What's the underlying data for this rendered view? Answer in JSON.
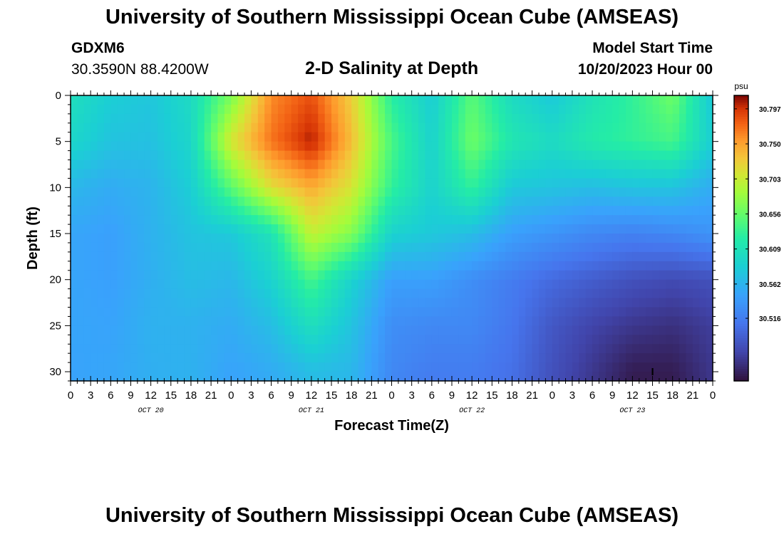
{
  "header": {
    "title": "University of Southern Mississippi Ocean Cube (AMSEAS)",
    "station": "GDXM6",
    "coordinates": "30.3590N  88.4200W",
    "subtitle": "2-D Salinity at Depth",
    "model_start_label": "Model Start Time",
    "model_start_value": "10/20/2023 Hour 00"
  },
  "footer": {
    "title": "University of Southern Mississippi Ocean Cube (AMSEAS)"
  },
  "chart_data": {
    "type": "heatmap",
    "title": "2-D Salinity at Depth",
    "xlabel": "Forecast Time(Z)",
    "ylabel": "Depth (ft)",
    "x_hours": [
      0,
      6,
      12,
      18,
      24,
      30,
      36,
      42,
      48,
      54,
      60,
      66,
      72,
      78,
      84,
      90,
      96
    ],
    "y_depths_ft": [
      0,
      5,
      10,
      15,
      20,
      25,
      30
    ],
    "values_psu": [
      [
        30.605,
        30.585,
        30.578,
        30.6,
        30.665,
        30.76,
        30.785,
        30.725,
        30.625,
        30.585,
        30.65,
        30.6,
        30.58,
        30.61,
        30.63,
        30.66,
        30.578
      ],
      [
        30.595,
        30.575,
        30.573,
        30.595,
        30.71,
        30.77,
        30.805,
        30.735,
        30.642,
        30.59,
        30.66,
        30.615,
        30.6,
        30.62,
        30.63,
        30.64,
        30.585
      ],
      [
        30.565,
        30.555,
        30.562,
        30.585,
        30.65,
        30.715,
        30.745,
        30.71,
        30.63,
        30.59,
        30.63,
        30.58,
        30.575,
        30.57,
        30.575,
        30.575,
        30.555
      ],
      [
        30.55,
        30.545,
        30.56,
        30.575,
        30.58,
        30.61,
        30.7,
        30.67,
        30.59,
        30.58,
        30.57,
        30.545,
        30.535,
        30.525,
        30.52,
        30.525,
        30.535
      ],
      [
        30.55,
        30.545,
        30.558,
        30.57,
        30.565,
        30.59,
        30.64,
        30.59,
        30.545,
        30.545,
        30.53,
        30.515,
        30.5,
        30.49,
        30.48,
        30.475,
        30.48
      ],
      [
        30.55,
        30.548,
        30.56,
        30.56,
        30.555,
        30.57,
        30.605,
        30.575,
        30.53,
        30.525,
        30.525,
        30.51,
        30.485,
        30.47,
        30.46,
        30.455,
        30.465
      ],
      [
        30.548,
        30.55,
        30.558,
        30.56,
        30.548,
        30.555,
        30.57,
        30.565,
        30.525,
        30.515,
        30.515,
        30.505,
        30.48,
        30.46,
        30.44,
        30.44,
        30.46
      ]
    ],
    "x_tick_labels": [
      "0",
      "3",
      "6",
      "9",
      "12",
      "15",
      "18",
      "21",
      "0",
      "3",
      "6",
      "9",
      "12",
      "15",
      "18",
      "21",
      "0",
      "3",
      "6",
      "9",
      "12",
      "15",
      "18",
      "21",
      "0",
      "3",
      "6",
      "9",
      "12",
      "15",
      "18",
      "21",
      "0"
    ],
    "day_labels": [
      "OCT 20",
      "OCT 21",
      "OCT 22",
      "OCT 23"
    ],
    "y_tick_labels": [
      "0",
      "5",
      "10",
      "15",
      "20",
      "25",
      "30"
    ],
    "ylim": [
      0,
      31
    ],
    "xlim_hours": [
      0,
      96
    ],
    "colorbar": {
      "unit": "psu",
      "min": 30.432,
      "max": 30.815,
      "tick_values": [
        30.797,
        30.75,
        30.703,
        30.656,
        30.609,
        30.562,
        30.516
      ],
      "tick_labels": [
        "30.797",
        "30.750",
        "30.703",
        "30.656",
        "30.609",
        "30.562",
        "30.516"
      ]
    },
    "marker": {
      "label": "I",
      "hour": 87,
      "depth": 30
    }
  }
}
